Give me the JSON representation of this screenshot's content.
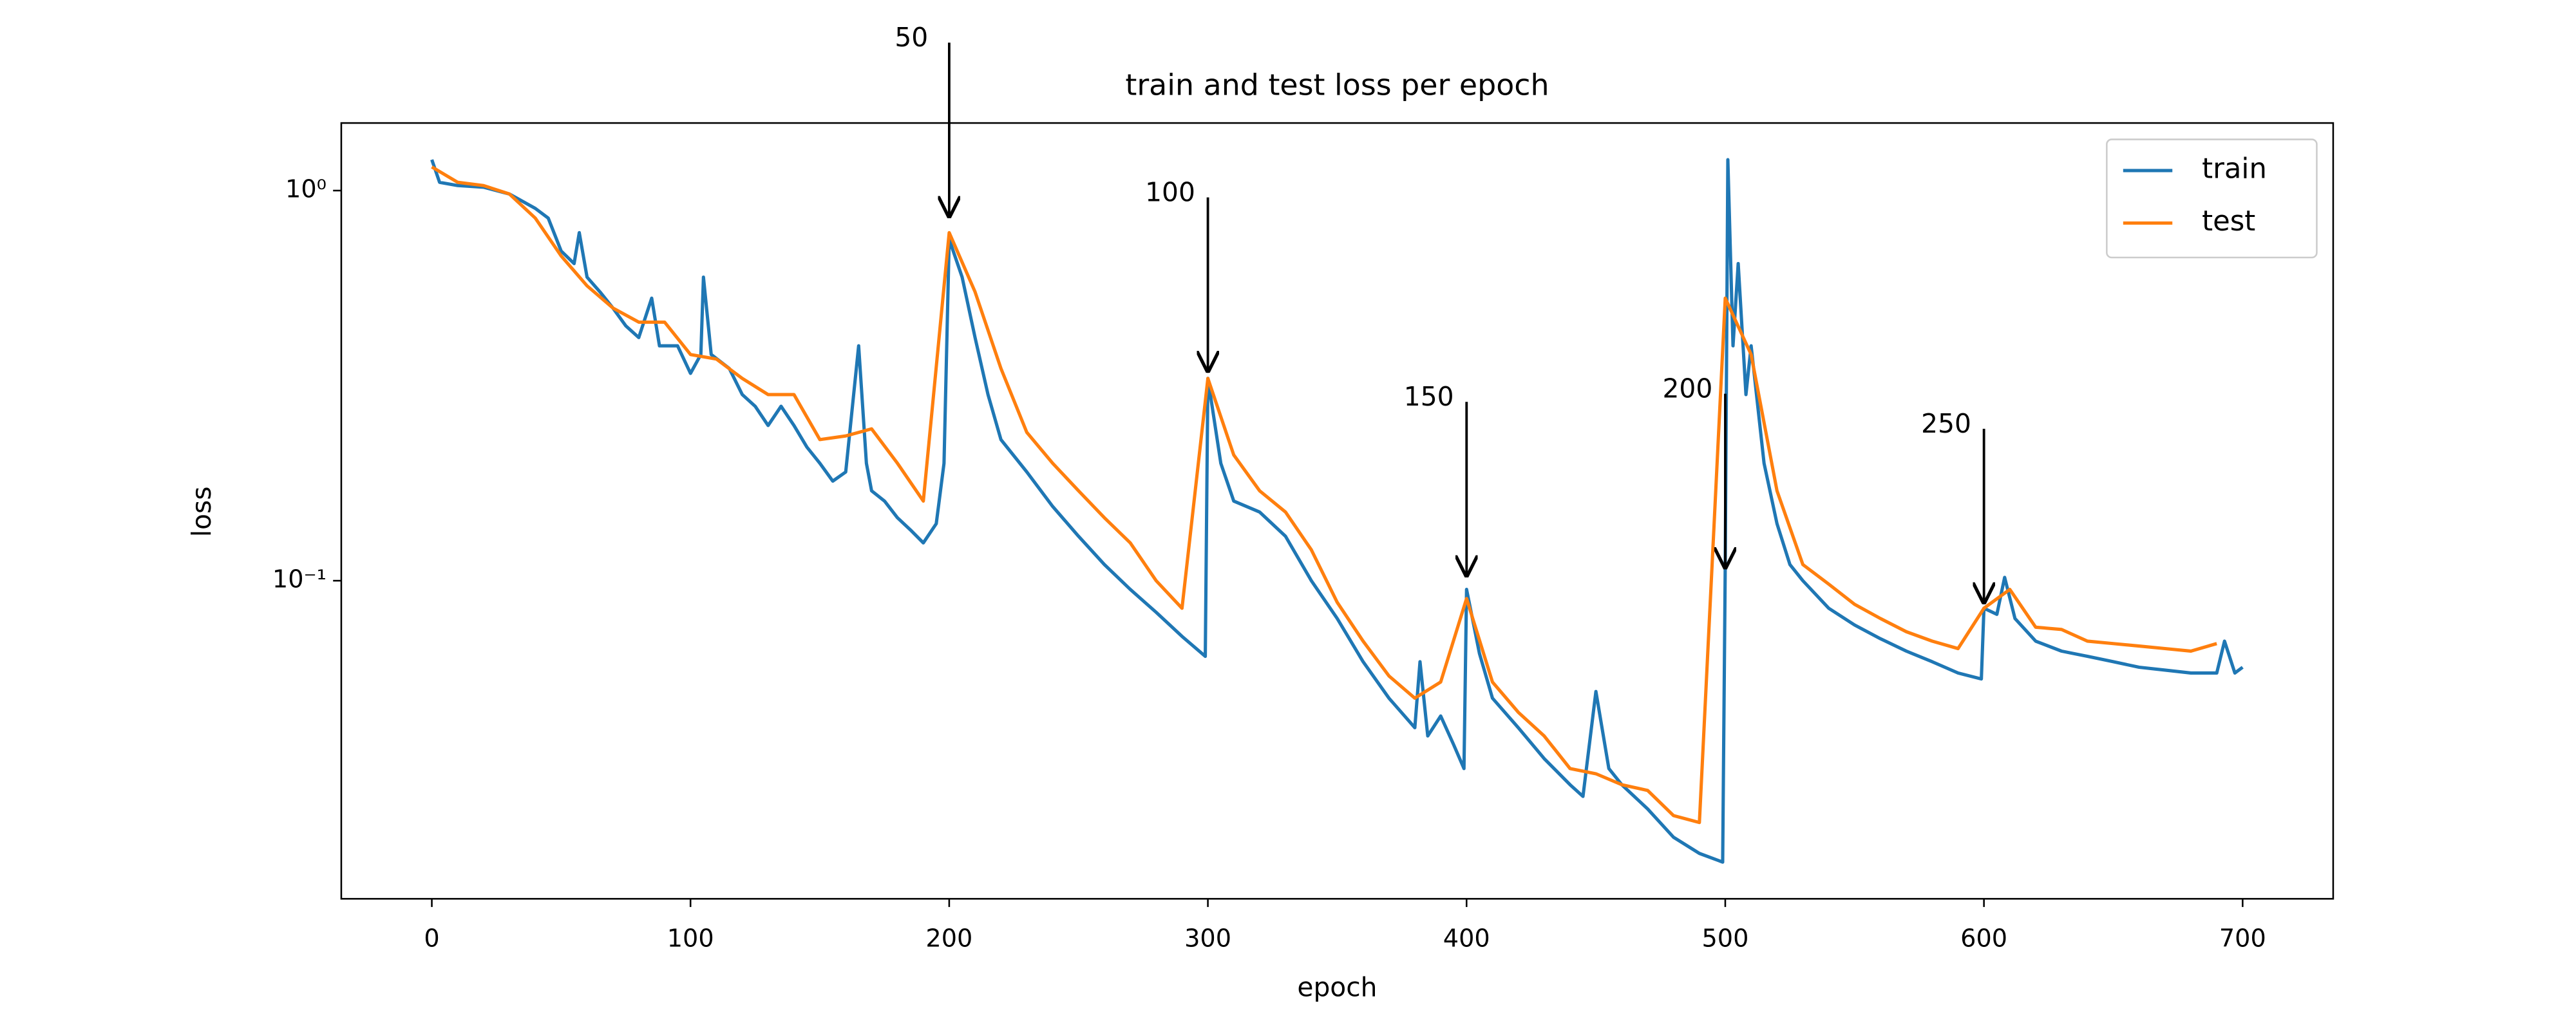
{
  "chart_data": {
    "type": "line",
    "title": "train and test loss per epoch",
    "xlabel": "epoch",
    "ylabel": "loss",
    "xlim": [
      -35,
      735
    ],
    "xticks": [
      0,
      100,
      200,
      300,
      400,
      500,
      600,
      700
    ],
    "ylim": [
      0.0153,
      1.49
    ],
    "log_y": true,
    "yticks": [
      {
        "value": 1,
        "label": "10⁰"
      },
      {
        "value": 0.1,
        "label": "10⁻¹"
      }
    ],
    "legend": "upper right",
    "series": [
      {
        "name": "train",
        "color": "#1f77b4",
        "x": [
          0,
          3,
          10,
          20,
          30,
          40,
          45,
          50,
          55,
          57,
          60,
          65,
          70,
          75,
          80,
          85,
          88,
          95,
          100,
          104,
          105,
          108,
          115,
          120,
          125,
          130,
          135,
          140,
          145,
          150,
          155,
          160,
          165,
          168,
          170,
          175,
          180,
          185,
          190,
          195,
          198,
          200,
          205,
          210,
          215,
          220,
          230,
          240,
          250,
          260,
          270,
          280,
          290,
          299,
          300,
          305,
          310,
          320,
          330,
          340,
          350,
          360,
          370,
          380,
          382,
          385,
          390,
          395,
          399,
          400,
          405,
          410,
          420,
          430,
          440,
          445,
          450,
          455,
          460,
          470,
          480,
          490,
          499,
          500,
          501,
          503,
          505,
          508,
          510,
          515,
          520,
          525,
          530,
          540,
          550,
          560,
          570,
          580,
          590,
          599,
          600,
          605,
          608,
          612,
          620,
          630,
          640,
          650,
          660,
          670,
          680,
          690,
          693,
          697,
          700
        ],
        "values": [
          1.2,
          1.05,
          1.03,
          1.02,
          0.98,
          0.9,
          0.85,
          0.7,
          0.65,
          0.78,
          0.6,
          0.55,
          0.5,
          0.45,
          0.42,
          0.53,
          0.4,
          0.4,
          0.34,
          0.38,
          0.6,
          0.38,
          0.35,
          0.3,
          0.28,
          0.25,
          0.28,
          0.25,
          0.22,
          0.2,
          0.18,
          0.19,
          0.4,
          0.2,
          0.17,
          0.16,
          0.145,
          0.135,
          0.125,
          0.14,
          0.2,
          0.75,
          0.6,
          0.42,
          0.3,
          0.23,
          0.19,
          0.155,
          0.13,
          0.11,
          0.095,
          0.083,
          0.072,
          0.064,
          0.33,
          0.2,
          0.16,
          0.15,
          0.13,
          0.1,
          0.08,
          0.062,
          0.05,
          0.042,
          0.062,
          0.04,
          0.045,
          0.038,
          0.033,
          0.095,
          0.065,
          0.05,
          0.042,
          0.035,
          0.03,
          0.028,
          0.052,
          0.033,
          0.03,
          0.026,
          0.022,
          0.02,
          0.019,
          0.11,
          1.2,
          0.4,
          0.65,
          0.3,
          0.4,
          0.2,
          0.14,
          0.11,
          0.1,
          0.085,
          0.077,
          0.071,
          0.066,
          0.062,
          0.058,
          0.056,
          0.085,
          0.082,
          0.102,
          0.08,
          0.07,
          0.066,
          0.064,
          0.062,
          0.06,
          0.059,
          0.058,
          0.058,
          0.07,
          0.058,
          0.06
        ]
      },
      {
        "name": "test",
        "color": "#ff7f0e",
        "x": [
          0,
          10,
          20,
          30,
          40,
          50,
          60,
          70,
          80,
          90,
          100,
          110,
          120,
          130,
          140,
          150,
          160,
          170,
          180,
          190,
          200,
          210,
          220,
          230,
          240,
          250,
          260,
          270,
          280,
          290,
          300,
          310,
          320,
          330,
          340,
          350,
          360,
          370,
          380,
          390,
          400,
          410,
          420,
          430,
          440,
          450,
          460,
          470,
          480,
          490,
          500,
          510,
          520,
          530,
          540,
          550,
          560,
          570,
          580,
          590,
          600,
          610,
          620,
          630,
          640,
          650,
          660,
          670,
          680,
          690
        ],
        "values": [
          1.15,
          1.05,
          1.03,
          0.98,
          0.85,
          0.68,
          0.57,
          0.5,
          0.46,
          0.46,
          0.38,
          0.37,
          0.33,
          0.3,
          0.3,
          0.23,
          0.235,
          0.245,
          0.2,
          0.16,
          0.78,
          0.55,
          0.35,
          0.24,
          0.2,
          0.17,
          0.145,
          0.125,
          0.1,
          0.085,
          0.33,
          0.21,
          0.17,
          0.15,
          0.12,
          0.088,
          0.07,
          0.057,
          0.05,
          0.055,
          0.09,
          0.055,
          0.046,
          0.04,
          0.033,
          0.032,
          0.03,
          0.029,
          0.025,
          0.024,
          0.53,
          0.38,
          0.17,
          0.11,
          0.098,
          0.087,
          0.08,
          0.074,
          0.07,
          0.067,
          0.085,
          0.095,
          0.076,
          0.075,
          0.07,
          0.069,
          0.068,
          0.067,
          0.066,
          0.069
        ]
      }
    ],
    "annotations": [
      {
        "text": "50",
        "x": 200,
        "y": 0.85
      },
      {
        "text": "100",
        "x": 300,
        "y": 0.341
      },
      {
        "text": "150",
        "x": 400,
        "y": 0.102
      },
      {
        "text": "200",
        "x": 500,
        "y": 0.107
      },
      {
        "text": "250",
        "x": 600,
        "y": 0.087
      }
    ]
  }
}
